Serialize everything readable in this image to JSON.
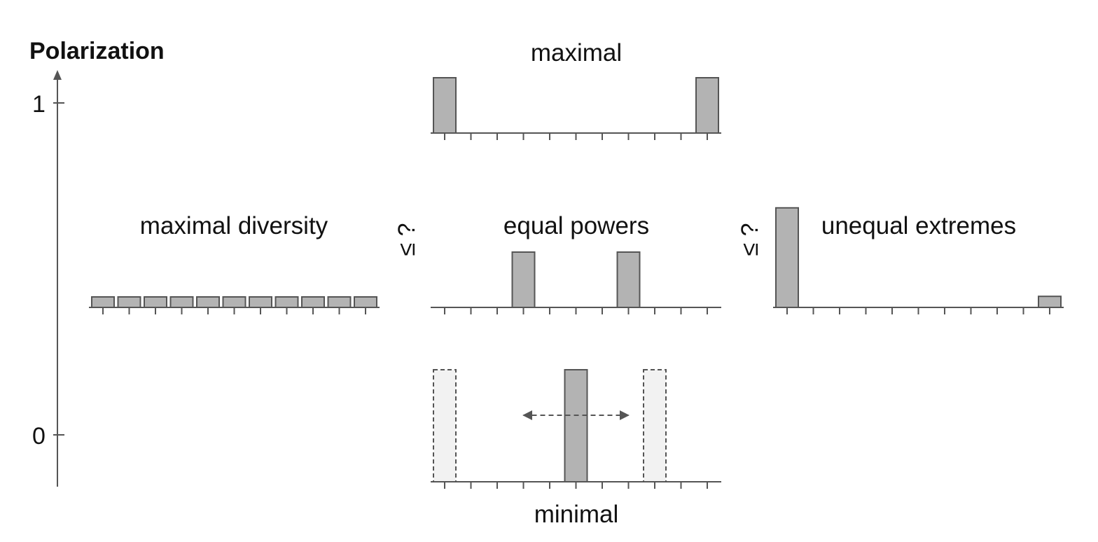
{
  "y_axis": {
    "title": "Polarization",
    "ticks": [
      {
        "value": 1,
        "label": "1"
      },
      {
        "value": 0,
        "label": "0"
      }
    ]
  },
  "comparators": {
    "left": "≤ ?",
    "right": "≤ ?"
  },
  "panels": [
    {
      "id": "maximal",
      "title": "maximal",
      "title_position": "above",
      "bins": 11,
      "values": [
        1,
        0,
        0,
        0,
        0,
        0,
        0,
        0,
        0,
        0,
        1
      ],
      "ghost_values": []
    },
    {
      "id": "maximal-diversity",
      "title": "maximal diversity",
      "title_position": "above",
      "bins": 11,
      "values": [
        0.2,
        0.2,
        0.2,
        0.2,
        0.2,
        0.2,
        0.2,
        0.2,
        0.2,
        0.2,
        0.2
      ],
      "ghost_values": []
    },
    {
      "id": "equal-powers",
      "title": "equal powers",
      "title_position": "above",
      "bins": 11,
      "values": [
        0,
        0,
        0,
        1,
        0,
        0,
        0,
        1,
        0,
        0,
        0
      ],
      "ghost_values": []
    },
    {
      "id": "unequal-extremes",
      "title": "unequal extremes",
      "title_position": "above-right",
      "bins": 11,
      "values": [
        1.8,
        0,
        0,
        0,
        0,
        0,
        0,
        0,
        0,
        0,
        0.2
      ],
      "ghost_values": []
    },
    {
      "id": "minimal",
      "title": "minimal",
      "title_position": "below",
      "bins": 11,
      "values": [
        0,
        0,
        0,
        0,
        0,
        2,
        0,
        0,
        0,
        0,
        0
      ],
      "ghost_values": [
        2,
        0,
        0,
        0,
        0,
        0,
        0,
        0,
        2,
        0,
        0
      ],
      "arrow": {
        "from_bin": 3,
        "to_bin": 7
      }
    }
  ]
}
